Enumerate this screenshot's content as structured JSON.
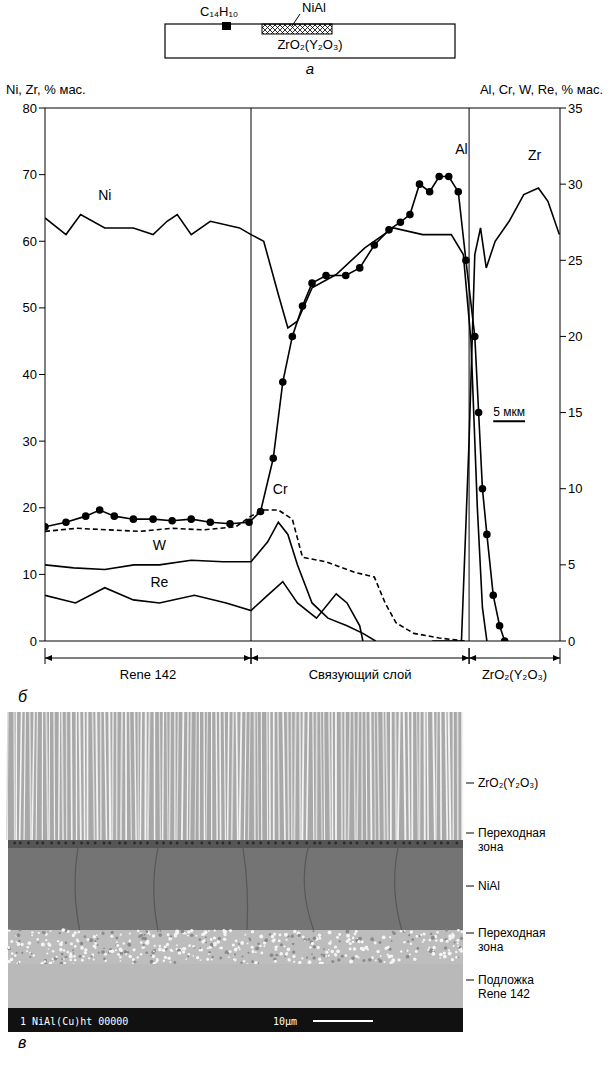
{
  "schematic": {
    "letter": "а",
    "source": "C₁₄H₁₀",
    "target": "NiAl",
    "substrate": "ZrO₂(Y₂O₃)"
  },
  "chart_data": {
    "type": "line",
    "panel_letter": "б",
    "y_label": "Ni, Zr, % мас.",
    "y2_label": "Al, Cr, W, Re, % мас.",
    "xlim": [
      0,
      81
    ],
    "ylim": [
      0,
      80
    ],
    "yticks": [
      0,
      10,
      20,
      30,
      40,
      50,
      60,
      70,
      80
    ],
    "y2lim": [
      0,
      35
    ],
    "y2ticks": [
      0,
      5,
      10,
      15,
      20,
      25,
      30,
      35
    ],
    "tick_labels": "y",
    "grid": false,
    "regions": [
      {
        "label": "Rene 142",
        "from": 0,
        "to": 32.4
      },
      {
        "label": "Связующий слой",
        "from": 32.4,
        "to": 66.7
      },
      {
        "label": "ZrO₂(Y₂O₃)",
        "from": 66.7,
        "to": 81
      }
    ],
    "scale_bar": {
      "label": "5 мкм",
      "length": 5
    },
    "series": [
      {
        "name": "Ni",
        "color": "#000000",
        "axis": "y",
        "marker": "none",
        "line_style": "solid",
        "x": [
          0,
          3.3,
          5.6,
          9.4,
          13.9,
          17,
          19.2,
          20.8,
          23,
          26,
          30.6,
          32.4,
          34.4,
          36.7,
          38.2,
          39.7,
          42,
          45.8,
          50.3,
          54.8,
          59.4,
          63.9,
          65.8,
          67,
          68,
          68.8,
          69.5
        ],
        "values": [
          63.5,
          61,
          64,
          62,
          62,
          61,
          63,
          64,
          61,
          63,
          62,
          61,
          60,
          52,
          47,
          48,
          53,
          55,
          59,
          62,
          61,
          61,
          58,
          45,
          20,
          5,
          0
        ]
      },
      {
        "name": "Zr",
        "color": "#000000",
        "axis": "y",
        "marker": "none",
        "line_style": "solid",
        "x": [
          60.9,
          65.5,
          66.7,
          67.6,
          68.5,
          69.4,
          70.8,
          73,
          75.3,
          77.6,
          79.1,
          80.9
        ],
        "values": [
          0,
          0,
          30,
          58,
          62,
          56,
          60,
          63,
          67,
          68,
          66,
          61
        ]
      },
      {
        "name": "Al",
        "color": "#000000",
        "axis": "y2",
        "marker": "circle",
        "line_style": "solid",
        "x": [
          0,
          3.3,
          6.4,
          8.6,
          10.9,
          13.9,
          17,
          20,
          23,
          26,
          29.1,
          32.1,
          33.9,
          35.9,
          37.4,
          38.9,
          40.5,
          42,
          44.2,
          47.3,
          49.5,
          51.8,
          54.1,
          55.9,
          57.4,
          58.9,
          60.5,
          62,
          63.5,
          65,
          66.2,
          67.6,
          68.2,
          68.8,
          69.5,
          70.5,
          71.5,
          72.3
        ],
        "values": [
          7.5,
          7.8,
          8.2,
          8.6,
          8.2,
          8,
          8,
          7.9,
          8,
          7.8,
          7.7,
          7.8,
          8.5,
          12,
          17,
          20,
          22,
          23.5,
          24,
          24,
          24.5,
          26,
          27,
          27.5,
          28,
          30,
          29.5,
          30.5,
          30.5,
          29.5,
          25,
          20,
          15,
          10,
          7,
          3,
          1,
          0
        ]
      },
      {
        "name": "Cr",
        "color": "#000000",
        "axis": "y2",
        "marker": "none",
        "line_style": "dashed",
        "x": [
          0,
          5,
          10,
          15,
          20,
          25,
          30,
          32.4,
          34.4,
          36.7,
          38.9,
          40.5,
          44.2,
          48.8,
          51.8,
          53.5,
          55.2,
          58,
          62,
          66
        ],
        "values": [
          7.2,
          7.4,
          7.3,
          7.2,
          7.4,
          7.3,
          7.5,
          8.2,
          8.6,
          8.6,
          8,
          5.5,
          5.2,
          4.5,
          4.2,
          2.5,
          1.2,
          0.5,
          0.2,
          0
        ]
      },
      {
        "name": "W",
        "color": "#000000",
        "axis": "y2",
        "marker": "none",
        "line_style": "solid",
        "x": [
          0,
          4.5,
          9.4,
          14,
          18,
          23,
          28,
          32.4,
          35,
          36.7,
          38.2,
          39.7,
          42,
          44.5,
          47.5,
          50,
          52
        ],
        "values": [
          5,
          4.8,
          4.7,
          5,
          5,
          5.3,
          5.2,
          5.2,
          6.5,
          7.8,
          7,
          5,
          2.5,
          1.5,
          1,
          0.5,
          0
        ]
      },
      {
        "name": "Re",
        "color": "#000000",
        "axis": "y2",
        "marker": "none",
        "line_style": "solid",
        "x": [
          0,
          4.8,
          9.4,
          13.9,
          18,
          23.5,
          28.5,
          32.4,
          35,
          37.4,
          39.7,
          42.7,
          45.8,
          47.5,
          49.5,
          50
        ],
        "values": [
          3,
          2.5,
          3.5,
          2.7,
          2.5,
          3,
          2.5,
          2,
          3,
          3.9,
          2.5,
          1.5,
          3.1,
          2.5,
          1,
          0
        ]
      }
    ]
  },
  "micrograph": {
    "letter": "в",
    "layers": [
      "ZrO₂(Y₂O₃)",
      "Переходная зона",
      "NiAl",
      "Переходная зона",
      "Подложка Rene 142"
    ],
    "info_text": "1 NiAl(Cu)ht  00000",
    "scale_label": "10μm"
  }
}
